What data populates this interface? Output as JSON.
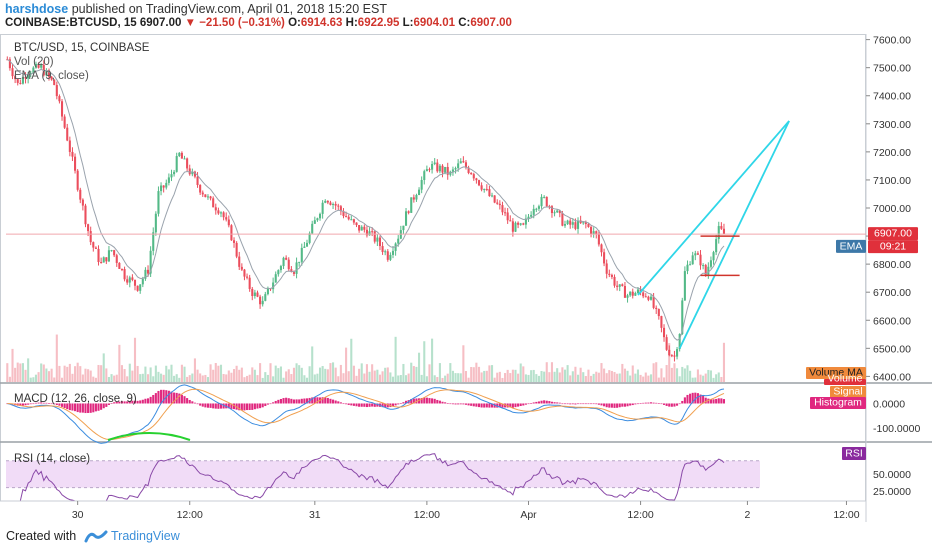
{
  "header": {
    "author": "harshdose",
    "published": "published on TradingView.com, April 01, 2018 15:20 EST",
    "symbol": "COINBASE:BTCUSD, 15",
    "last": "6907.00",
    "change": "−21.50 (−0.31%)",
    "o_label": "O:",
    "o": "6914.63",
    "h_label": "H:",
    "h": "6922.95",
    "l_label": "L:",
    "l": "6904.01",
    "c_label": "C:",
    "c": "6907.00"
  },
  "legend": {
    "title": "BTC/USD, 15, COINBASE",
    "vol": "Vol (20)",
    "ema": "EMA (9, close)"
  },
  "badges": {
    "price": "6907.00",
    "countdown": "09:21",
    "ema": "EMA",
    "volume_ma": "Volume MA",
    "volume": "Volume",
    "signal": "Signal",
    "histogram": "Histogram",
    "rsi": "RSI"
  },
  "macd_label": "MACD (12, 26, close, 9)",
  "rsi_label": "RSI (14, close)",
  "footer": {
    "created": "Created with",
    "brand": "TradingView"
  },
  "colors": {
    "up": "#53b987",
    "down": "#eb4d5c",
    "ema": "#9aa3ad",
    "trendline": "#2fd6e8",
    "hline": "#d0342c",
    "macd_hist": "#e0287f",
    "rsi_band": "#f1dcf7",
    "badge_blue": "#3d78a8",
    "badge_red": "#e0303b"
  },
  "chart_data": {
    "type": "candlestick",
    "main_axis": {
      "ylim": [
        6380,
        7620
      ],
      "ticks": [
        7600,
        7500,
        7400,
        7300,
        7200,
        7100,
        7000,
        6900,
        6800,
        6700,
        6600,
        6500,
        6400
      ],
      "tick_labels": [
        "7600.00",
        "7500.00",
        "7400.00",
        "7300.00",
        "7200.00",
        "7100.00",
        "7000.00",
        "6900.00",
        "6800.00",
        "6700.00",
        "6600.00",
        "6500.00",
        "6400.00"
      ]
    },
    "x_axis": {
      "ticks": [
        {
          "label": "30",
          "i": 27
        },
        {
          "label": "12:00",
          "i": 70
        },
        {
          "label": "31",
          "i": 118
        },
        {
          "label": "12:00",
          "i": 161
        },
        {
          "label": "Apr",
          "i": 200
        },
        {
          "label": "12:00",
          "i": 243
        },
        {
          "label": "2",
          "i": 284
        },
        {
          "label": "12:00",
          "i": 322
        }
      ],
      "bar_count": 330
    },
    "path_points": [
      [
        0,
        7530
      ],
      [
        4,
        7440
      ],
      [
        8,
        7490
      ],
      [
        13,
        7500
      ],
      [
        18,
        7440
      ],
      [
        23,
        7250
      ],
      [
        28,
        7040
      ],
      [
        32,
        6880
      ],
      [
        36,
        6800
      ],
      [
        40,
        6850
      ],
      [
        45,
        6760
      ],
      [
        50,
        6720
      ],
      [
        54,
        6780
      ],
      [
        58,
        7050
      ],
      [
        62,
        7100
      ],
      [
        66,
        7190
      ],
      [
        70,
        7130
      ],
      [
        74,
        7070
      ],
      [
        78,
        7020
      ],
      [
        82,
        6990
      ],
      [
        86,
        6900
      ],
      [
        90,
        6770
      ],
      [
        94,
        6700
      ],
      [
        98,
        6660
      ],
      [
        102,
        6740
      ],
      [
        106,
        6820
      ],
      [
        110,
        6780
      ],
      [
        114,
        6860
      ],
      [
        118,
        6950
      ],
      [
        122,
        7040
      ],
      [
        126,
        7010
      ],
      [
        130,
        6970
      ],
      [
        134,
        6930
      ],
      [
        138,
        6920
      ],
      [
        142,
        6880
      ],
      [
        146,
        6830
      ],
      [
        150,
        6900
      ],
      [
        154,
        7000
      ],
      [
        158,
        7080
      ],
      [
        162,
        7150
      ],
      [
        166,
        7140
      ],
      [
        170,
        7120
      ],
      [
        174,
        7160
      ],
      [
        178,
        7130
      ],
      [
        182,
        7080
      ],
      [
        186,
        7030
      ],
      [
        190,
        6990
      ],
      [
        194,
        6930
      ],
      [
        198,
        6930
      ],
      [
        202,
        7010
      ],
      [
        206,
        7030
      ],
      [
        210,
        6990
      ],
      [
        214,
        6940
      ],
      [
        218,
        6940
      ],
      [
        222,
        6940
      ],
      [
        226,
        6900
      ],
      [
        230,
        6780
      ],
      [
        234,
        6720
      ],
      [
        238,
        6690
      ],
      [
        242,
        6700
      ],
      [
        246,
        6690
      ],
      [
        250,
        6600
      ],
      [
        253,
        6500
      ],
      [
        256,
        6470
      ],
      [
        258,
        6560
      ],
      [
        260,
        6770
      ],
      [
        263,
        6840
      ],
      [
        266,
        6810
      ],
      [
        268,
        6760
      ],
      [
        271,
        6860
      ],
      [
        273,
        6920
      ],
      [
        275,
        6910
      ]
    ],
    "last_bar_index": 275,
    "last_price": 6907.0,
    "ema_period": 9,
    "trendlines": [
      {
        "from": [
          242,
          6690
        ],
        "to": [
          300,
          7310
        ]
      },
      {
        "from": [
          258,
          6500
        ],
        "to": [
          300,
          7310
        ]
      }
    ],
    "horizontal_levels": [
      {
        "from_i": 266,
        "to_i": 281,
        "y": 6900
      },
      {
        "from_i": 266,
        "to_i": 281,
        "y": 6760
      }
    ],
    "macd": {
      "ylim": [
        -150,
        80
      ],
      "ticks": [
        0,
        -100
      ],
      "tick_labels": [
        "0.0000",
        "-100.0000"
      ]
    },
    "rsi": {
      "ylim": [
        10,
        95
      ],
      "band": [
        30,
        70
      ],
      "ticks": [
        50,
        25
      ],
      "tick_labels": [
        "50.0000",
        "25.0000"
      ]
    }
  }
}
